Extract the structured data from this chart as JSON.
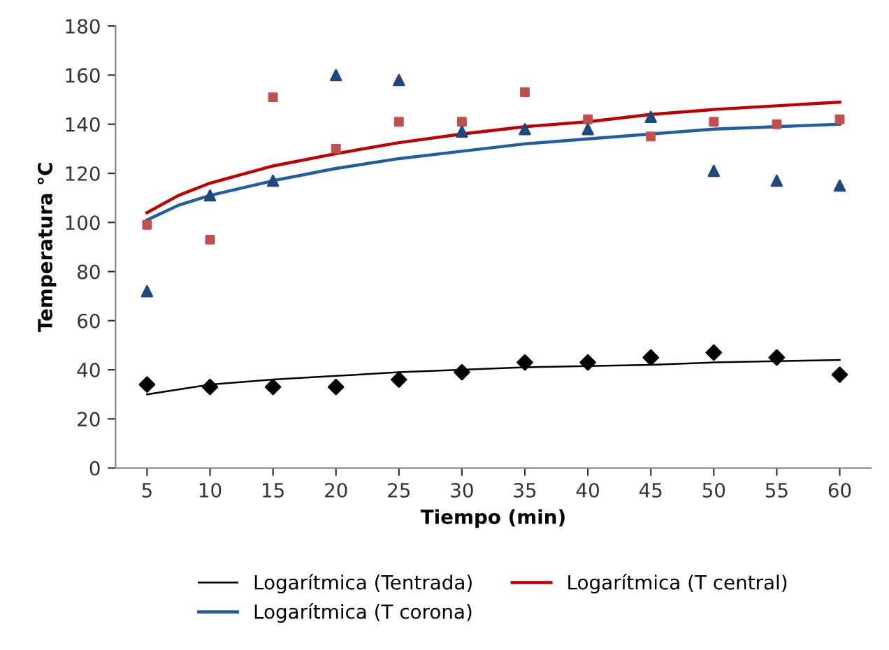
{
  "chart_data": {
    "type": "scatter",
    "xlabel": "Tiempo (min)",
    "ylabel": "Temperatura °C",
    "x": [
      5,
      10,
      15,
      20,
      25,
      30,
      35,
      40,
      45,
      50,
      55,
      60
    ],
    "xlim": [
      2.5,
      62.5
    ],
    "xticks": [
      5,
      10,
      15,
      20,
      25,
      30,
      35,
      40,
      45,
      50,
      55,
      60
    ],
    "ylim": [
      0,
      180
    ],
    "yticks": [
      0,
      20,
      40,
      60,
      80,
      100,
      120,
      140,
      160,
      180
    ],
    "grid": false,
    "legend": "bottom",
    "series": [
      {
        "marker": "diamond",
        "color": "#000000",
        "values": [
          34,
          33,
          33,
          33,
          36,
          39,
          43,
          43,
          45,
          47,
          45,
          38
        ]
      },
      {
        "marker": "square",
        "color": "#c0504d",
        "values": [
          99,
          93,
          151,
          130,
          141,
          141,
          153,
          142,
          135,
          141,
          140,
          142
        ]
      },
      {
        "marker": "triangle",
        "color": "#1f497d",
        "values": [
          72,
          111,
          117,
          160,
          158,
          137,
          138,
          138,
          143,
          121,
          117,
          115
        ]
      },
      {
        "type": "line",
        "name": "Logarítmica (Tentrada)",
        "color": "#000000",
        "x": [
          5,
          7.5,
          10,
          15,
          20,
          25,
          30,
          35,
          40,
          45,
          50,
          55,
          60
        ],
        "values": [
          30,
          32,
          34,
          36,
          37.5,
          39,
          40,
          41,
          41.5,
          42,
          43,
          43.5,
          44
        ]
      },
      {
        "type": "line",
        "name": "Logarítmica (T central)",
        "color": "#c00000",
        "x": [
          5,
          7.5,
          10,
          15,
          20,
          25,
          30,
          35,
          40,
          45,
          50,
          55,
          60
        ],
        "values": [
          104,
          111,
          116,
          123,
          128,
          132.5,
          136,
          139,
          141,
          144,
          146,
          147.5,
          149
        ]
      },
      {
        "type": "line",
        "name": "Logarítmica (T corona)",
        "color": "#1f5fa0",
        "x": [
          5,
          7.5,
          10,
          15,
          20,
          25,
          30,
          35,
          40,
          45,
          50,
          55,
          60
        ],
        "values": [
          101,
          107,
          111,
          117,
          122,
          126,
          129,
          132,
          134,
          136,
          138,
          139,
          140
        ]
      }
    ]
  }
}
